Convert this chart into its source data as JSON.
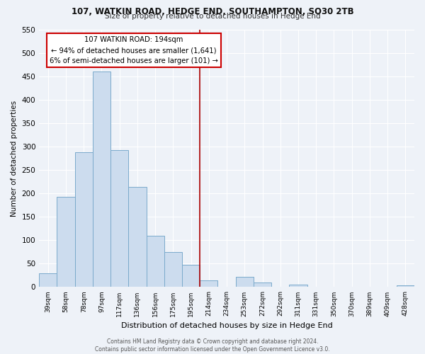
{
  "title": "107, WATKIN ROAD, HEDGE END, SOUTHAMPTON, SO30 2TB",
  "subtitle": "Size of property relative to detached houses in Hedge End",
  "xlabel": "Distribution of detached houses by size in Hedge End",
  "ylabel": "Number of detached properties",
  "bar_labels": [
    "39sqm",
    "58sqm",
    "78sqm",
    "97sqm",
    "117sqm",
    "136sqm",
    "156sqm",
    "175sqm",
    "195sqm",
    "214sqm",
    "234sqm",
    "253sqm",
    "272sqm",
    "292sqm",
    "311sqm",
    "331sqm",
    "350sqm",
    "370sqm",
    "389sqm",
    "409sqm",
    "428sqm"
  ],
  "bar_values": [
    30,
    192,
    288,
    460,
    292,
    213,
    110,
    75,
    47,
    14,
    0,
    22,
    10,
    0,
    5,
    0,
    0,
    0,
    0,
    0,
    3
  ],
  "bar_color": "#ccdcee",
  "bar_edge_color": "#7aaacb",
  "vline_x_index": 8,
  "vline_color": "#aa0000",
  "annotation_title": "107 WATKIN ROAD: 194sqm",
  "annotation_line2": "← 94% of detached houses are smaller (1,641)",
  "annotation_line3": "6% of semi-detached houses are larger (101) →",
  "annotation_box_color": "#cc0000",
  "ylim": [
    0,
    550
  ],
  "yticks": [
    0,
    50,
    100,
    150,
    200,
    250,
    300,
    350,
    400,
    450,
    500,
    550
  ],
  "footer_line1": "Contains HM Land Registry data © Crown copyright and database right 2024.",
  "footer_line2": "Contains public sector information licensed under the Open Government Licence v3.0.",
  "bg_color": "#eef2f8",
  "grid_color": "#ffffff"
}
